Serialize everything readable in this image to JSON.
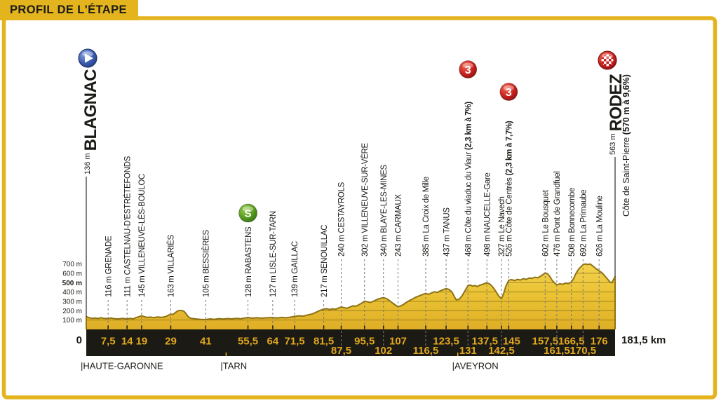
{
  "header": {
    "title": "PROFIL DE L'ÉTAPE"
  },
  "colors": {
    "accent_yellow": "#E4B41F",
    "terrain_top": "#F3D24E",
    "terrain_mid": "#EAC334",
    "terrain_bottom": "#DFAE26",
    "terrain_outline": "#8F7314",
    "bar_black": "#1B1A15",
    "km_text": "#E2A81E",
    "leader_grey": "#7a7a7a",
    "climb_red": "#C8201D",
    "sprint_green": "#569A1E",
    "start_blue": "#3D5CAD"
  },
  "chart_data": {
    "type": "area",
    "title": "PROFIL DE L'ÉTAPE",
    "x_unit": "km",
    "y_unit": "m",
    "xlim": [
      0,
      181.5
    ],
    "ylim": [
      0,
      700
    ],
    "grid": "inside-terrain",
    "total_label": "181,5 km",
    "zero_label": "0",
    "y_ticks": [
      {
        "value": 100,
        "label": "100 m",
        "bold": false
      },
      {
        "value": 200,
        "label": "200 m",
        "bold": false
      },
      {
        "value": 300,
        "label": "300 m",
        "bold": false
      },
      {
        "value": 400,
        "label": "400 m",
        "bold": false
      },
      {
        "value": 500,
        "label": "500 m",
        "bold": true
      },
      {
        "value": 600,
        "label": "600 m",
        "bold": false
      },
      {
        "value": 700,
        "label": "700 m",
        "bold": false
      }
    ],
    "start": {
      "name": "BLAGNAC",
      "km": 0,
      "elevation": 136,
      "elevation_label": "136 m",
      "icon": "start-icon"
    },
    "finish": {
      "name": "RODEZ",
      "km": 181.5,
      "elevation": 563,
      "elevation_label": "563 m",
      "subtitle": "Côte de Saint-Pierre ",
      "subtitle_bold": "(570 m à 9,6%)",
      "icon": "finish-icon"
    },
    "badges": {
      "cat3": {
        "label": "3",
        "kind": "category-3-climb"
      },
      "sprint": {
        "label": "S",
        "kind": "intermediate-sprint"
      }
    },
    "waypoints": [
      {
        "km": 7.5,
        "km_label": "7,5",
        "elev": 116,
        "elev_label": "116 m",
        "name": "GRENADE",
        "row": "top"
      },
      {
        "km": 14,
        "km_label": "14",
        "elev": 111,
        "elev_label": "111 m",
        "name": "CASTELNAU-D'ESTRÉTEFONDS",
        "row": "top"
      },
      {
        "km": 19,
        "km_label": "19",
        "elev": 145,
        "elev_label": "145 m",
        "name": "VILLENEUVE-LÈS-BOULOC",
        "row": "top"
      },
      {
        "km": 29,
        "km_label": "29",
        "elev": 163,
        "elev_label": "163 m",
        "name": "VILLARIÈS",
        "row": "top"
      },
      {
        "km": 41,
        "km_label": "41",
        "elev": 105,
        "elev_label": "105 m",
        "name": "BESSIÈRES",
        "row": "top"
      },
      {
        "km": 55.5,
        "km_label": "55,5",
        "elev": 128,
        "elev_label": "128 m",
        "name": "RABASTENS",
        "row": "top",
        "badge": "sprint",
        "badge_y": 304
      },
      {
        "km": 64,
        "km_label": "64",
        "elev": 127,
        "elev_label": "127 m",
        "name": "LISLE-SUR-TARN",
        "row": "top"
      },
      {
        "km": 71.5,
        "km_label": "71,5",
        "elev": 139,
        "elev_label": "139 m",
        "name": "GAILLAC",
        "row": "top"
      },
      {
        "km": 81.5,
        "km_label": "81,5",
        "elev": 217,
        "elev_label": "217 m",
        "name": "SENOUILLAC",
        "row": "top"
      },
      {
        "km": 87.5,
        "km_label": "87,5",
        "elev": 240,
        "elev_label": "240 m",
        "name": "CESTAYROLS",
        "row": "bottom"
      },
      {
        "km": 95.5,
        "km_label": "95,5",
        "elev": 302,
        "elev_label": "302 m",
        "name": "VILLENEUVE-SUR-VÈRE",
        "row": "top"
      },
      {
        "km": 102,
        "km_label": "102",
        "elev": 340,
        "elev_label": "340 m",
        "name": "BLAYE-LES-MINES",
        "row": "bottom"
      },
      {
        "km": 107,
        "km_label": "107",
        "elev": 243,
        "elev_label": "243 m",
        "name": "CARMAUX",
        "row": "top"
      },
      {
        "km": 116.5,
        "km_label": "116,5",
        "elev": 385,
        "elev_label": "385 m",
        "name": "La Croix de Mille",
        "row": "bottom"
      },
      {
        "km": 123.5,
        "km_label": "123,5",
        "elev": 437,
        "elev_label": "437 m",
        "name": "TANUS",
        "row": "top"
      },
      {
        "km": 131,
        "km_label": "131",
        "elev": 468,
        "elev_label": "468 m",
        "name": "Côte du viaduc du Viaur",
        "bold_suffix": "(2,3 km à 7%)",
        "row": "bottom",
        "badge": "cat3",
        "badge_y": 99
      },
      {
        "km": 137.5,
        "km_label": "137,5",
        "elev": 498,
        "elev_label": "498 m",
        "name": "NAUCELLE-Gare",
        "row": "top",
        "nudge": -3
      },
      {
        "km": 142.5,
        "km_label": "142,5",
        "elev": 327,
        "elev_label": "327 m",
        "name": "Le Navech",
        "row": "bottom"
      },
      {
        "km": 145,
        "km_label": "145",
        "elev": 526,
        "elev_label": "526 m",
        "name": "Côte de Centrès",
        "bold_suffix": "(2,3 km à 7,7%)",
        "row": "top",
        "badge": "cat3",
        "badge_y": 131,
        "nudge": 4
      },
      {
        "km": 157.5,
        "km_label": "157,5",
        "elev": 602,
        "elev_label": "602 m",
        "name": "Le Bousquet",
        "row": "top"
      },
      {
        "km": 161.5,
        "km_label": "161,5",
        "elev": 476,
        "elev_label": "476 m",
        "name": "Pont de Grandfuel",
        "row": "bottom"
      },
      {
        "km": 166.5,
        "km_label": "166,5",
        "elev": 508,
        "elev_label": "508 m",
        "name": "Bonnecombe",
        "row": "top"
      },
      {
        "km": 170.5,
        "km_label": "170,5",
        "elev": 692,
        "elev_label": "692 m",
        "name": "La Primaube",
        "row": "bottom"
      },
      {
        "km": 176,
        "km_label": "176",
        "elev": 626,
        "elev_label": "626 m",
        "name": "La Mouline",
        "row": "top"
      }
    ],
    "departments": [
      {
        "label": "|HAUTE-GARONNE",
        "km": 0
      },
      {
        "label": "|TARN",
        "km": 48
      },
      {
        "label": "|AVEYRON",
        "km": 127.5
      }
    ],
    "profile": [
      [
        0,
        136
      ],
      [
        1,
        125
      ],
      [
        2,
        118
      ],
      [
        3,
        122
      ],
      [
        4,
        116
      ],
      [
        5,
        125
      ],
      [
        6,
        118
      ],
      [
        7.5,
        116
      ],
      [
        8.5,
        122
      ],
      [
        9.5,
        115
      ],
      [
        11,
        112
      ],
      [
        12.5,
        118
      ],
      [
        14,
        111
      ],
      [
        15,
        118
      ],
      [
        16,
        112
      ],
      [
        17,
        125
      ],
      [
        19,
        145
      ],
      [
        20,
        135
      ],
      [
        21,
        128
      ],
      [
        22,
        132
      ],
      [
        23,
        126
      ],
      [
        24.5,
        133
      ],
      [
        26,
        128
      ],
      [
        27.5,
        140
      ],
      [
        29,
        163
      ],
      [
        29.8,
        160
      ],
      [
        30.5,
        178
      ],
      [
        31.5,
        200
      ],
      [
        32.5,
        203
      ],
      [
        33.5,
        195
      ],
      [
        34.2,
        170
      ],
      [
        35,
        135
      ],
      [
        36,
        118
      ],
      [
        37.5,
        112
      ],
      [
        39,
        108
      ],
      [
        41,
        105
      ],
      [
        42.5,
        112
      ],
      [
        44,
        108
      ],
      [
        45.5,
        115
      ],
      [
        47,
        110
      ],
      [
        48.5,
        116
      ],
      [
        50,
        112
      ],
      [
        51.5,
        118
      ],
      [
        53,
        114
      ],
      [
        55.5,
        128
      ],
      [
        57,
        120
      ],
      [
        58.5,
        125
      ],
      [
        60,
        120
      ],
      [
        62,
        124
      ],
      [
        64,
        127
      ],
      [
        65.5,
        122
      ],
      [
        67,
        128
      ],
      [
        68.5,
        124
      ],
      [
        70,
        130
      ],
      [
        71.5,
        139
      ],
      [
        73,
        145
      ],
      [
        74.5,
        142
      ],
      [
        76,
        155
      ],
      [
        77.5,
        165
      ],
      [
        79,
        185
      ],
      [
        80,
        200
      ],
      [
        81.5,
        217
      ],
      [
        82.5,
        222
      ],
      [
        83.5,
        212
      ],
      [
        84.5,
        220
      ],
      [
        85.5,
        215
      ],
      [
        86.5,
        228
      ],
      [
        87.5,
        240
      ],
      [
        88.5,
        232
      ],
      [
        89.5,
        226
      ],
      [
        90.5,
        240
      ],
      [
        91.5,
        252
      ],
      [
        92.5,
        248
      ],
      [
        93.5,
        262
      ],
      [
        94.5,
        280
      ],
      [
        95.5,
        302
      ],
      [
        96.5,
        295
      ],
      [
        97.5,
        288
      ],
      [
        98.5,
        300
      ],
      [
        99.5,
        315
      ],
      [
        100.5,
        328
      ],
      [
        102,
        340
      ],
      [
        103,
        330
      ],
      [
        104,
        310
      ],
      [
        105,
        285
      ],
      [
        106,
        262
      ],
      [
        107,
        243
      ],
      [
        108,
        252
      ],
      [
        109,
        270
      ],
      [
        110,
        292
      ],
      [
        111,
        310
      ],
      [
        112,
        325
      ],
      [
        113,
        342
      ],
      [
        114,
        355
      ],
      [
        115,
        368
      ],
      [
        116.5,
        385
      ],
      [
        117.5,
        375
      ],
      [
        118.5,
        390
      ],
      [
        119.5,
        402
      ],
      [
        120.5,
        395
      ],
      [
        121.5,
        412
      ],
      [
        122.5,
        425
      ],
      [
        123.5,
        437
      ],
      [
        124.5,
        428
      ],
      [
        125.5,
        400
      ],
      [
        126.3,
        352
      ],
      [
        127,
        315
      ],
      [
        128,
        322
      ],
      [
        129,
        360
      ],
      [
        130,
        415
      ],
      [
        131,
        468
      ],
      [
        131.8,
        475
      ],
      [
        132.6,
        462
      ],
      [
        133.4,
        470
      ],
      [
        134.2,
        458
      ],
      [
        135,
        472
      ],
      [
        136,
        482
      ],
      [
        137.5,
        498
      ],
      [
        138.5,
        485
      ],
      [
        139.5,
        455
      ],
      [
        140.5,
        410
      ],
      [
        141.5,
        360
      ],
      [
        142.5,
        327
      ],
      [
        143.2,
        380
      ],
      [
        144,
        460
      ],
      [
        145,
        526
      ],
      [
        146,
        532
      ],
      [
        147,
        522
      ],
      [
        148,
        535
      ],
      [
        149,
        528
      ],
      [
        150,
        542
      ],
      [
        151,
        535
      ],
      [
        152,
        550
      ],
      [
        153,
        545
      ],
      [
        154,
        558
      ],
      [
        155,
        552
      ],
      [
        156,
        570
      ],
      [
        157.5,
        602
      ],
      [
        158.3,
        595
      ],
      [
        159,
        570
      ],
      [
        160,
        520
      ],
      [
        161.5,
        476
      ],
      [
        162.5,
        488
      ],
      [
        163.5,
        482
      ],
      [
        164.5,
        495
      ],
      [
        165.5,
        490
      ],
      [
        166.5,
        508
      ],
      [
        167.3,
        545
      ],
      [
        168,
        595
      ],
      [
        169,
        645
      ],
      [
        170.5,
        692
      ],
      [
        171.3,
        700
      ],
      [
        172,
        694
      ],
      [
        173,
        698
      ],
      [
        174,
        675
      ],
      [
        175,
        648
      ],
      [
        176,
        626
      ],
      [
        177,
        605
      ],
      [
        178,
        570
      ],
      [
        179,
        535
      ],
      [
        179.8,
        505
      ],
      [
        180.4,
        498
      ],
      [
        180.9,
        530
      ],
      [
        181.5,
        563
      ]
    ]
  }
}
